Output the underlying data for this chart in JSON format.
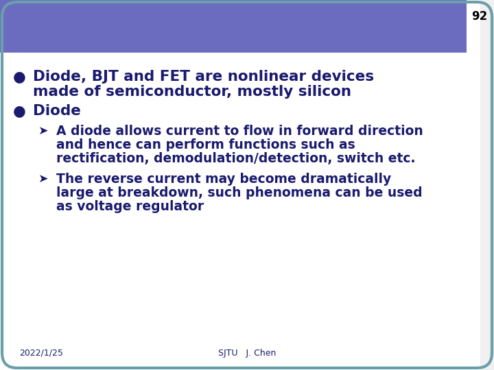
{
  "slide_number": "92",
  "background_color": "#f0f0f0",
  "slide_bg": "#ffffff",
  "header_color": "#6b6bbf",
  "slide_border_color": "#6b9faa",
  "text_color": "#1a1a6e",
  "bullet_color": "#1a1a6e",
  "footer_text_left": "2022/1/25",
  "footer_text_center": "SJTU   J. Chen",
  "bullet1_line1": "Diode, BJT and FET are nonlinear devices",
  "bullet1_line2": "made of semiconductor, mostly silicon",
  "bullet2": "Diode",
  "sub1_line1": "A diode allows current to flow in forward direction",
  "sub1_line2": "and hence can perform functions such as",
  "sub1_line3": "rectification, demodulation/detection, switch etc.",
  "sub2_line1": "The reverse current may become dramatically",
  "sub2_line2": "large at breakdown, such phenomena can be used",
  "sub2_line3": "as voltage regulator",
  "main_fontsize": 15.5,
  "sub_fontsize": 13.5,
  "footer_fontsize": 9,
  "slide_num_fontsize": 12
}
